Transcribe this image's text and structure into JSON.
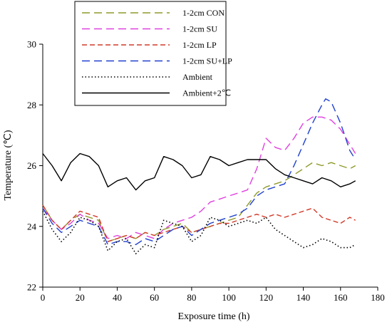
{
  "chart_data": {
    "type": "line",
    "title": "",
    "xlabel": "Exposure time (h)",
    "ylabel": "Temperature (℃)",
    "xlim": [
      0,
      180
    ],
    "ylim": [
      22,
      30
    ],
    "xticks": [
      "0",
      "20",
      "40",
      "60",
      "80",
      "100",
      "120",
      "140",
      "160",
      "180"
    ],
    "yticks": [
      "22",
      "24",
      "26",
      "28",
      "30"
    ],
    "grid": false,
    "legend_position": "top-center",
    "series": [
      {
        "name": "1-2cm CON",
        "color": "#8f9a2a",
        "dash": "long-dash",
        "x": [
          0,
          5,
          10,
          15,
          20,
          25,
          30,
          35,
          40,
          45,
          50,
          55,
          60,
          65,
          70,
          75,
          80,
          85,
          90,
          95,
          100,
          105,
          110,
          115,
          120,
          125,
          130,
          135,
          140,
          145,
          150,
          155,
          160,
          165,
          168
        ],
        "y": [
          24.7,
          24.2,
          23.9,
          24.2,
          24.4,
          24.3,
          24.2,
          23.5,
          23.6,
          23.7,
          23.6,
          23.8,
          23.7,
          23.9,
          24.0,
          24.1,
          23.8,
          23.9,
          24.0,
          24.1,
          24.2,
          24.3,
          24.7,
          25.1,
          25.3,
          25.4,
          25.5,
          25.7,
          25.9,
          26.1,
          26.0,
          26.1,
          26.0,
          25.9,
          26.0
        ]
      },
      {
        "name": "1-2cm SU",
        "color": "#e040e0",
        "dash": "long-dash",
        "x": [
          0,
          5,
          10,
          15,
          20,
          25,
          30,
          35,
          40,
          45,
          50,
          55,
          60,
          65,
          70,
          75,
          80,
          85,
          90,
          95,
          100,
          105,
          110,
          115,
          120,
          125,
          130,
          135,
          140,
          145,
          150,
          155,
          160,
          165,
          168
        ],
        "y": [
          24.6,
          24.2,
          23.9,
          24.1,
          24.4,
          24.2,
          24.1,
          23.6,
          23.7,
          23.6,
          23.8,
          23.7,
          23.6,
          23.9,
          24.1,
          24.2,
          24.3,
          24.5,
          24.8,
          24.9,
          25.0,
          25.1,
          25.2,
          25.9,
          26.9,
          26.6,
          26.5,
          26.9,
          27.4,
          27.6,
          27.6,
          27.5,
          27.2,
          26.7,
          26.4
        ]
      },
      {
        "name": "1-2cm LP",
        "color": "#d23a2a",
        "dash": "dash",
        "x": [
          0,
          5,
          10,
          15,
          20,
          25,
          30,
          35,
          40,
          45,
          50,
          55,
          60,
          65,
          70,
          75,
          80,
          85,
          90,
          95,
          100,
          105,
          110,
          115,
          120,
          125,
          130,
          135,
          140,
          145,
          150,
          155,
          160,
          165,
          168
        ],
        "y": [
          24.7,
          24.2,
          23.9,
          24.2,
          24.5,
          24.4,
          24.3,
          23.5,
          23.6,
          23.7,
          23.6,
          23.8,
          23.7,
          23.8,
          23.9,
          24.0,
          23.8,
          23.9,
          24.0,
          24.1,
          24.1,
          24.2,
          24.3,
          24.4,
          24.3,
          24.4,
          24.3,
          24.4,
          24.5,
          24.6,
          24.3,
          24.2,
          24.1,
          24.3,
          24.2
        ]
      },
      {
        "name": "1-2cm SU+LP",
        "color": "#2040d0",
        "dash": "long-dash",
        "x": [
          0,
          5,
          10,
          15,
          20,
          25,
          30,
          35,
          40,
          45,
          50,
          55,
          60,
          65,
          70,
          75,
          80,
          85,
          90,
          95,
          100,
          105,
          110,
          115,
          120,
          125,
          130,
          135,
          140,
          145,
          150,
          152,
          155,
          160,
          165,
          168
        ],
        "y": [
          24.6,
          24.1,
          23.8,
          24.0,
          24.2,
          24.1,
          24.0,
          23.4,
          23.5,
          23.5,
          23.4,
          23.6,
          23.5,
          23.7,
          23.9,
          24.0,
          23.7,
          23.9,
          24.1,
          24.2,
          24.3,
          24.4,
          24.6,
          25.0,
          25.2,
          25.3,
          25.4,
          26.0,
          26.7,
          27.4,
          28.0,
          28.2,
          28.1,
          27.4,
          26.5,
          26.2
        ]
      },
      {
        "name": "Ambient",
        "color": "#000000",
        "dash": "dot",
        "x": [
          0,
          5,
          10,
          15,
          20,
          25,
          30,
          35,
          40,
          45,
          50,
          55,
          60,
          65,
          70,
          75,
          80,
          85,
          90,
          95,
          100,
          105,
          110,
          115,
          120,
          125,
          130,
          135,
          140,
          145,
          150,
          155,
          160,
          165,
          168
        ],
        "y": [
          24.5,
          23.9,
          23.5,
          23.8,
          24.3,
          24.2,
          24.0,
          23.2,
          23.5,
          23.6,
          23.1,
          23.4,
          23.3,
          24.2,
          24.1,
          24.0,
          23.5,
          23.7,
          24.3,
          24.2,
          24.0,
          24.1,
          24.2,
          24.1,
          24.3,
          23.9,
          23.7,
          23.5,
          23.3,
          23.4,
          23.6,
          23.5,
          23.3,
          23.3,
          23.4
        ]
      },
      {
        "name": "Ambient+2℃",
        "color": "#000000",
        "dash": "solid",
        "x": [
          0,
          5,
          10,
          15,
          20,
          25,
          30,
          35,
          40,
          45,
          50,
          55,
          60,
          65,
          70,
          75,
          80,
          85,
          90,
          95,
          100,
          105,
          110,
          115,
          120,
          125,
          130,
          135,
          140,
          145,
          150,
          155,
          160,
          165,
          168
        ],
        "y": [
          26.4,
          26.0,
          25.5,
          26.1,
          26.4,
          26.3,
          26.0,
          25.3,
          25.5,
          25.6,
          25.2,
          25.5,
          25.6,
          26.3,
          26.2,
          26.0,
          25.6,
          25.7,
          26.3,
          26.2,
          26.0,
          26.1,
          26.2,
          26.2,
          26.2,
          25.9,
          25.7,
          25.6,
          25.5,
          25.4,
          25.6,
          25.5,
          25.3,
          25.4,
          25.5
        ]
      }
    ]
  }
}
